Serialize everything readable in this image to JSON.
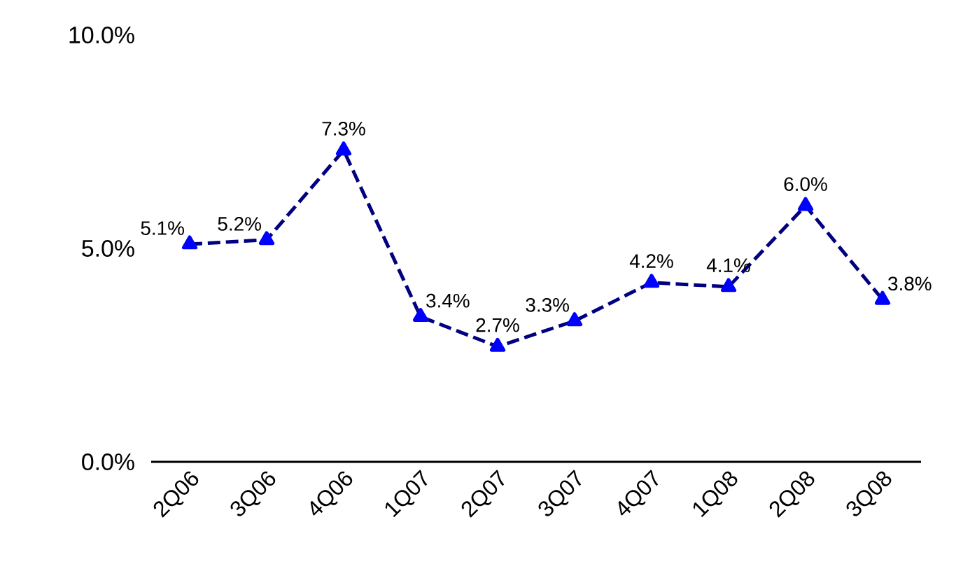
{
  "chart_data": {
    "type": "line",
    "categories": [
      "2Q06",
      "3Q06",
      "4Q06",
      "1Q07",
      "2Q07",
      "3Q07",
      "4Q07",
      "1Q08",
      "2Q08",
      "3Q08"
    ],
    "series": [
      {
        "color": "#000080",
        "values": [
          5.1,
          5.2,
          7.3,
          3.4,
          2.7,
          3.3,
          4.2,
          4.1,
          6.0,
          3.8
        ],
        "value_labels": [
          "5.1%",
          "5.2%",
          "7.3%",
          "3.4%",
          "2.7%",
          "3.3%",
          "4.2%",
          "4.1%",
          "6.0%",
          "3.8%"
        ]
      }
    ],
    "ylim": [
      0,
      10
    ],
    "yticks": [
      {
        "value": 0,
        "label": "0.0%"
      },
      {
        "value": 5,
        "label": "5.0%"
      },
      {
        "value": 10,
        "label": "10.0%"
      }
    ],
    "grid": false,
    "marker": "triangle",
    "line_style": "dashed"
  }
}
